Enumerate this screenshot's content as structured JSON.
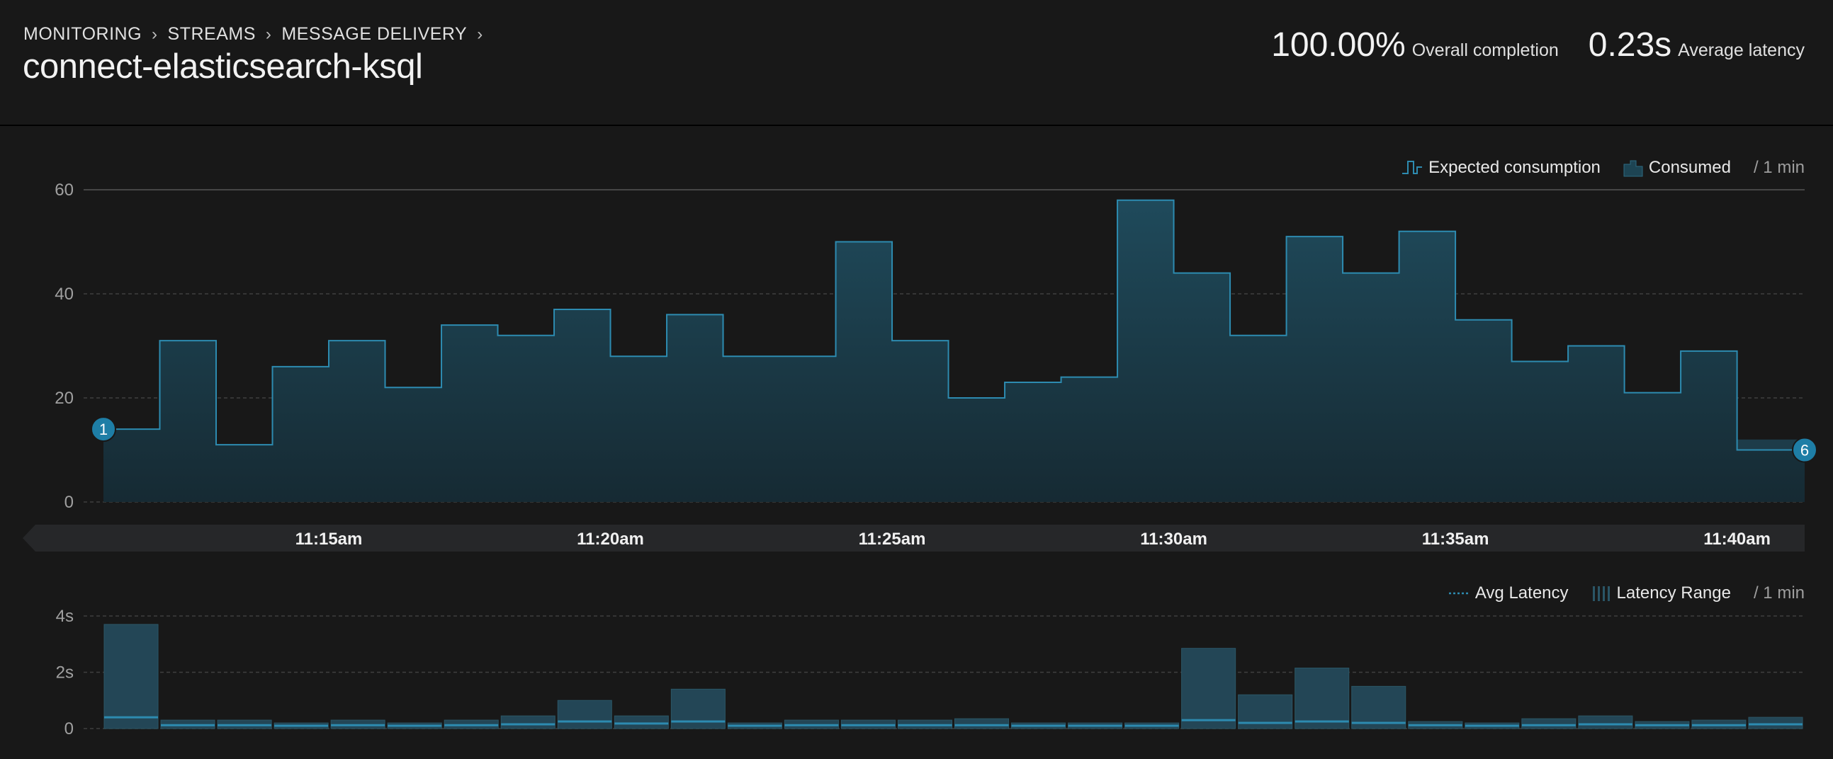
{
  "breadcrumb": [
    "MONITORING",
    "STREAMS",
    "MESSAGE DELIVERY"
  ],
  "title": "connect-elasticsearch-ksql",
  "stats": {
    "completion": {
      "value": "100.00%",
      "label": "Overall completion"
    },
    "latency": {
      "value": "0.23s",
      "label": "Average latency"
    }
  },
  "icons": {
    "separator": "chevron-right-icon",
    "expected": "step-line-icon",
    "consumed": "area-icon",
    "avg_latency": "dotted-line-icon",
    "latency_range": "striped-bars-icon"
  },
  "colors": {
    "accent": "#2d8bb0",
    "area": "#1d4453",
    "bar": "#234656"
  },
  "main_chart": {
    "legend": {
      "expected": "Expected consumption",
      "consumed": "Consumed",
      "per": "/ 1 min"
    },
    "chart_data": {
      "type": "area",
      "ylim": [
        0,
        60
      ],
      "yticks": [
        "0",
        "20",
        "40",
        "60"
      ],
      "values": [
        14,
        31,
        11,
        26,
        31,
        22,
        34,
        32,
        37,
        28,
        36,
        28,
        28,
        50,
        31,
        20,
        23,
        24,
        58,
        44,
        32,
        51,
        44,
        52,
        35,
        27,
        30,
        21,
        29,
        10
      ],
      "consumed_tail": 12,
      "xticks": [
        {
          "label": "11:15am",
          "index": 3
        },
        {
          "label": "11:20am",
          "index": 8
        },
        {
          "label": "11:25am",
          "index": 13
        },
        {
          "label": "11:30am",
          "index": 18
        },
        {
          "label": "11:35am",
          "index": 23
        },
        {
          "label": "11:40am",
          "index": 28
        }
      ],
      "markers": [
        {
          "label": "1",
          "index": 0,
          "value": 14
        },
        {
          "label": "6",
          "index": 30,
          "value": 10
        }
      ]
    }
  },
  "latency_chart": {
    "legend": {
      "avg": "Avg Latency",
      "range": "Latency Range",
      "per": "/ 1 min"
    },
    "chart_data": {
      "type": "bar",
      "ylim": [
        0,
        4.2
      ],
      "yticks": [
        {
          "label": "0",
          "value": 0
        },
        {
          "label": "2s",
          "value": 2
        },
        {
          "label": "4s",
          "value": 4
        }
      ],
      "max": [
        3.7,
        0.3,
        0.3,
        0.2,
        0.3,
        0.2,
        0.3,
        0.45,
        1.0,
        0.45,
        1.4,
        0.2,
        0.3,
        0.3,
        0.3,
        0.35,
        0.2,
        0.2,
        0.2,
        2.85,
        1.2,
        2.15,
        1.5,
        0.25,
        0.2,
        0.35,
        0.45,
        0.25,
        0.3,
        0.4
      ],
      "avg": [
        0.4,
        0.12,
        0.12,
        0.1,
        0.12,
        0.1,
        0.12,
        0.15,
        0.25,
        0.18,
        0.25,
        0.1,
        0.12,
        0.12,
        0.12,
        0.12,
        0.1,
        0.1,
        0.1,
        0.3,
        0.2,
        0.25,
        0.2,
        0.12,
        0.1,
        0.12,
        0.15,
        0.12,
        0.12,
        0.15
      ]
    }
  }
}
